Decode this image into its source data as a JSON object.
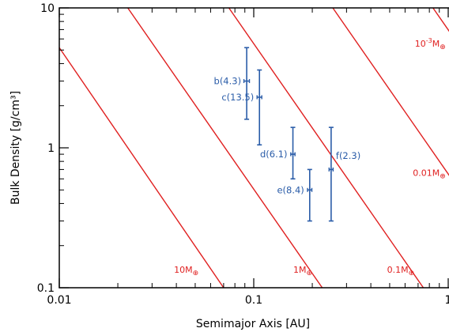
{
  "chart_data": {
    "type": "scatter",
    "xlabel": "Semimajor Axis [AU]",
    "ylabel": "Bulk Density [g/cm³]",
    "xscale": "log",
    "yscale": "log",
    "xlim": [
      0.01,
      1
    ],
    "ylim": [
      0.1,
      10
    ],
    "xticks": [
      {
        "value": 0.01,
        "label": "0.01"
      },
      {
        "value": 0.1,
        "label": "0.1"
      },
      {
        "value": 1,
        "label": "1"
      }
    ],
    "yticks": [
      {
        "value": 0.1,
        "label": "0.1"
      },
      {
        "value": 1,
        "label": "1"
      },
      {
        "value": 10,
        "label": "10"
      }
    ],
    "grid": false,
    "colors": {
      "points": "#2a5ca8",
      "lines": "#e02020",
      "axes": "#000000"
    },
    "reference_lines": [
      {
        "label": "10M",
        "sub": "⊕",
        "sup": "",
        "points": [
          [
            0.01,
            5.2
          ],
          [
            0.07,
            0.1
          ]
        ],
        "label_at": [
          0.052,
          0.128
        ]
      },
      {
        "label": "1M",
        "sub": "⊕",
        "sup": "",
        "points": [
          [
            0.0225,
            10
          ],
          [
            0.225,
            0.1
          ]
        ],
        "label_at": [
          0.2,
          0.128
        ]
      },
      {
        "label": "0.1M",
        "sub": "⊕",
        "sup": "",
        "points": [
          [
            0.0745,
            10
          ],
          [
            0.745,
            0.1
          ]
        ],
        "label_at": [
          0.67,
          0.128
        ]
      },
      {
        "label": "0.01M",
        "sub": "⊕",
        "sup": "",
        "points": [
          [
            0.255,
            10
          ],
          [
            2.55,
            0.1
          ]
        ],
        "label_at": [
          0.97,
          0.63
        ]
      },
      {
        "label": "10",
        "sub": "⊕",
        "sup": "-3",
        "points": [
          [
            0.835,
            10
          ],
          [
            8.35,
            0.1
          ]
        ],
        "label_at": [
          0.97,
          5.3
        ]
      }
    ],
    "points": [
      {
        "label": "b(4.3)",
        "x": 0.092,
        "y": 3.0,
        "ylow": 1.6,
        "yhigh": 5.2,
        "xerr": 0.003
      },
      {
        "label": "c(13.5)",
        "x": 0.107,
        "y": 2.3,
        "ylow": 1.05,
        "yhigh": 3.6,
        "xerr": 0.003
      },
      {
        "label": "d(6.1)",
        "x": 0.159,
        "y": 0.9,
        "ylow": 0.6,
        "yhigh": 1.4,
        "xerr": 0.004
      },
      {
        "label": "e(8.4)",
        "x": 0.194,
        "y": 0.5,
        "ylow": 0.3,
        "yhigh": 0.7,
        "xerr": 0.005
      },
      {
        "label": "f(2.3)",
        "x": 0.25,
        "y": 0.7,
        "ylow": 0.3,
        "yhigh": 1.4,
        "xerr": 0.006
      }
    ]
  }
}
